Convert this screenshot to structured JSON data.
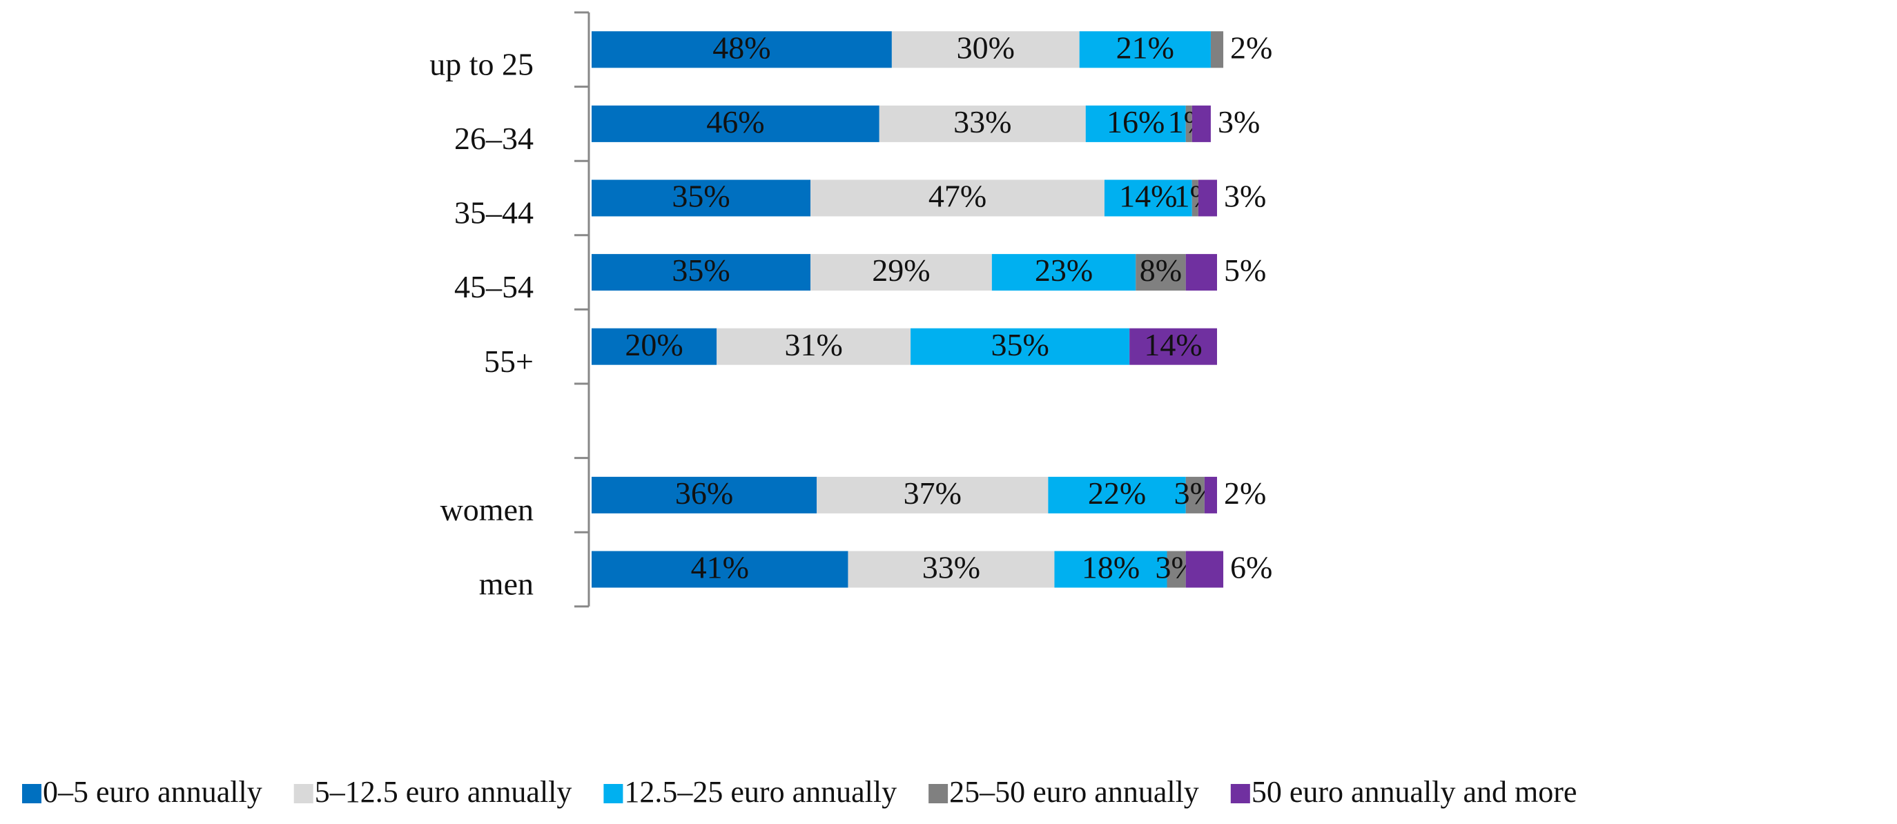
{
  "chart_data": {
    "type": "stacked-bar-horizontal",
    "categories": [
      "up to 25",
      "26–34",
      "35–44",
      "45–54",
      "55+",
      null,
      "women",
      "men"
    ],
    "xlim": [
      0,
      100
    ],
    "series": [
      {
        "name": "0–5 euro annually",
        "color": "#0070c0",
        "values": [
          48,
          46,
          35,
          35,
          20,
          null,
          36,
          41
        ],
        "value_labels": [
          "48%",
          "46%",
          "35%",
          "35%",
          "20%",
          null,
          "36%",
          "41%"
        ]
      },
      {
        "name": "5–12.5 euro annually",
        "color": "#d9d9d9",
        "values": [
          30,
          33,
          47,
          29,
          31,
          null,
          37,
          33
        ],
        "value_labels": [
          "30%",
          "33%",
          "47%",
          "29%",
          "31%",
          null,
          "37%",
          "33%"
        ]
      },
      {
        "name": "12.5–25 euro annually",
        "color": "#00b0f0",
        "values": [
          21,
          16,
          14,
          23,
          35,
          null,
          22,
          18
        ],
        "value_labels": [
          "21%",
          "16%",
          "14%",
          "23%",
          "35%",
          null,
          "22%",
          "18%"
        ]
      },
      {
        "name": "25–50 euro annually",
        "color": "#808080",
        "values": [
          2,
          1,
          1,
          8,
          null,
          null,
          3,
          3
        ],
        "value_labels": [
          "2%",
          "1%",
          "1%",
          "8%",
          null,
          null,
          "3%",
          "3%"
        ]
      },
      {
        "name": "50 euro annually and more",
        "color": "#7030a0",
        "values": [
          null,
          3,
          3,
          5,
          14,
          null,
          2,
          6
        ],
        "value_labels": [
          null,
          "3%",
          "3%",
          "5%",
          "14%",
          null,
          "2%",
          "6%"
        ]
      }
    ]
  }
}
